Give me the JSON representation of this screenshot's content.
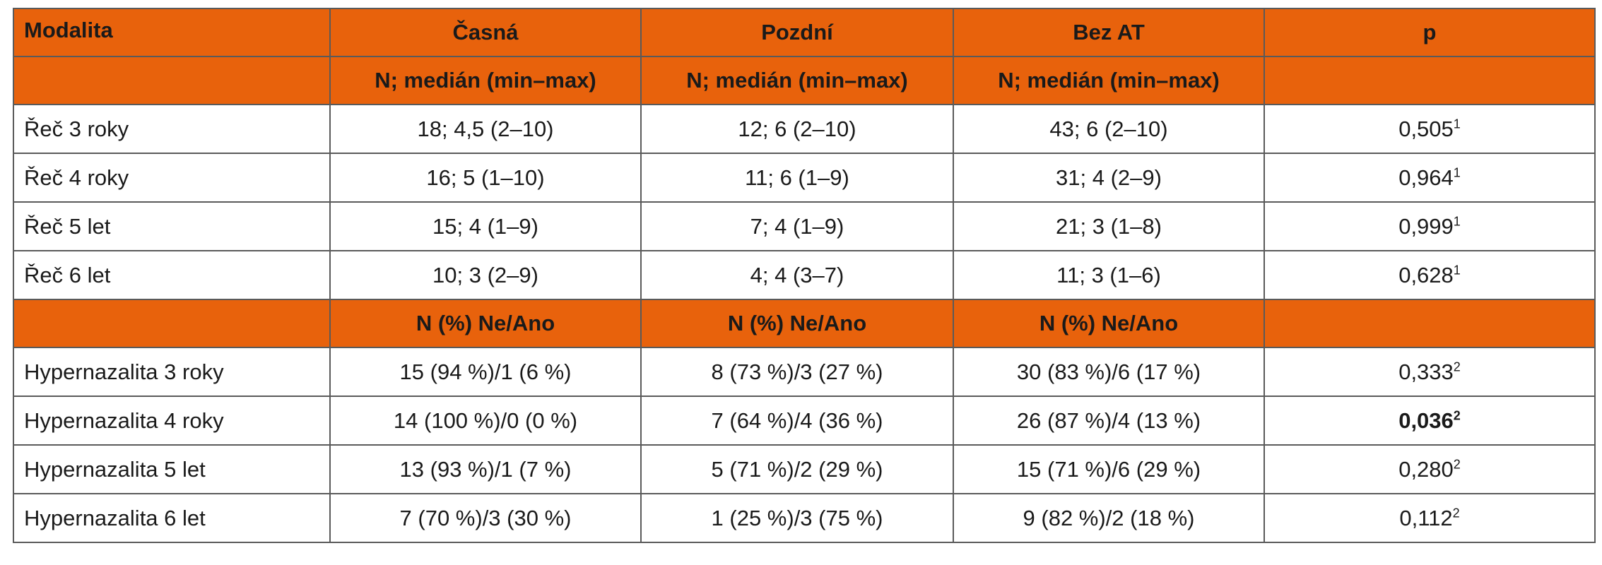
{
  "header": {
    "col0": "Modalita",
    "col1": "Časná",
    "col2": "Pozdní",
    "col3": "Bez AT",
    "col4": "p",
    "sub1": "N; medián (min–max)",
    "sub2": "N;  medián (min–max)",
    "sub3": "N; medián (min–max)"
  },
  "section1_rows": [
    {
      "label": "Řeč 3 roky",
      "casna": "18; 4,5 (2–10)",
      "pozdni": "12; 6 (2–10)",
      "bezat": "43; 6 (2–10)",
      "p": "0,505",
      "sup": "1"
    },
    {
      "label": "Řeč 4 roky",
      "casna": "16; 5 (1–10)",
      "pozdni": "11; 6 (1–9)",
      "bezat": "31; 4 (2–9)",
      "p": "0,964",
      "sup": "1"
    },
    {
      "label": "Řeč 5 let",
      "casna": "15; 4 (1–9)",
      "pozdni": "7; 4 (1–9)",
      "bezat": "21; 3 (1–8)",
      "p": "0,999",
      "sup": "1"
    },
    {
      "label": "Řeč 6 let",
      "casna": "10; 3 (2–9)",
      "pozdni": "4; 4 (3–7)",
      "bezat": "11; 3 (1–6)",
      "p": "0,628",
      "sup": "1"
    }
  ],
  "section2_header": {
    "col0": "",
    "col1": "N (%) Ne/Ano",
    "col2": "N (%) Ne/Ano",
    "col3": "N (%) Ne/Ano",
    "col4": ""
  },
  "section2_rows": [
    {
      "label": "Hypernazalita 3 roky",
      "casna": "15 (94 %)/1 (6 %)",
      "pozdni": "8 (73 %)/3 (27 %)",
      "bezat": "30 (83 %)/6 (17 %)",
      "p": "0,333",
      "sup": "2"
    },
    {
      "label": "Hypernazalita 4 roky",
      "casna": "14 (100 %)/0 (0 %)",
      "pozdni": "7 (64 %)/4 (36 %)",
      "bezat": "26 (87 %)/4 (13 %)",
      "p": "0,036",
      "sup": "2"
    },
    {
      "label": "Hypernazalita 5 let",
      "casna": "13 (93 %)/1 (7 %)",
      "pozdni": "5 (71 %)/2 (29 %)",
      "bezat": "15 (71 %)/6 (29 %)",
      "p": "0,280",
      "sup": "2"
    },
    {
      "label": "Hypernazalita 6 let",
      "casna": "7 (70 %)/3 (30 %)",
      "pozdni": "1 (25 %)/3 (75 %)",
      "bezat": "9 (82 %)/2 (18 %)",
      "p": "0,112",
      "sup": "2"
    }
  ],
  "colors": {
    "header_bg": "#e8620c",
    "border": "#5a5a5a"
  }
}
